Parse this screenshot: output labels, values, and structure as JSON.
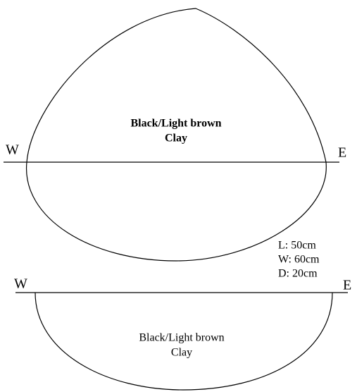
{
  "plan": {
    "west": "W",
    "east": "E",
    "fill_lines": [
      "Black/Light brown",
      "Clay"
    ]
  },
  "dimensions": [
    "L: 50cm",
    "W: 60cm",
    "D: 20cm"
  ],
  "section": {
    "west": "W",
    "east": "E",
    "fill_lines": [
      "Black/Light brown",
      "Clay"
    ]
  }
}
